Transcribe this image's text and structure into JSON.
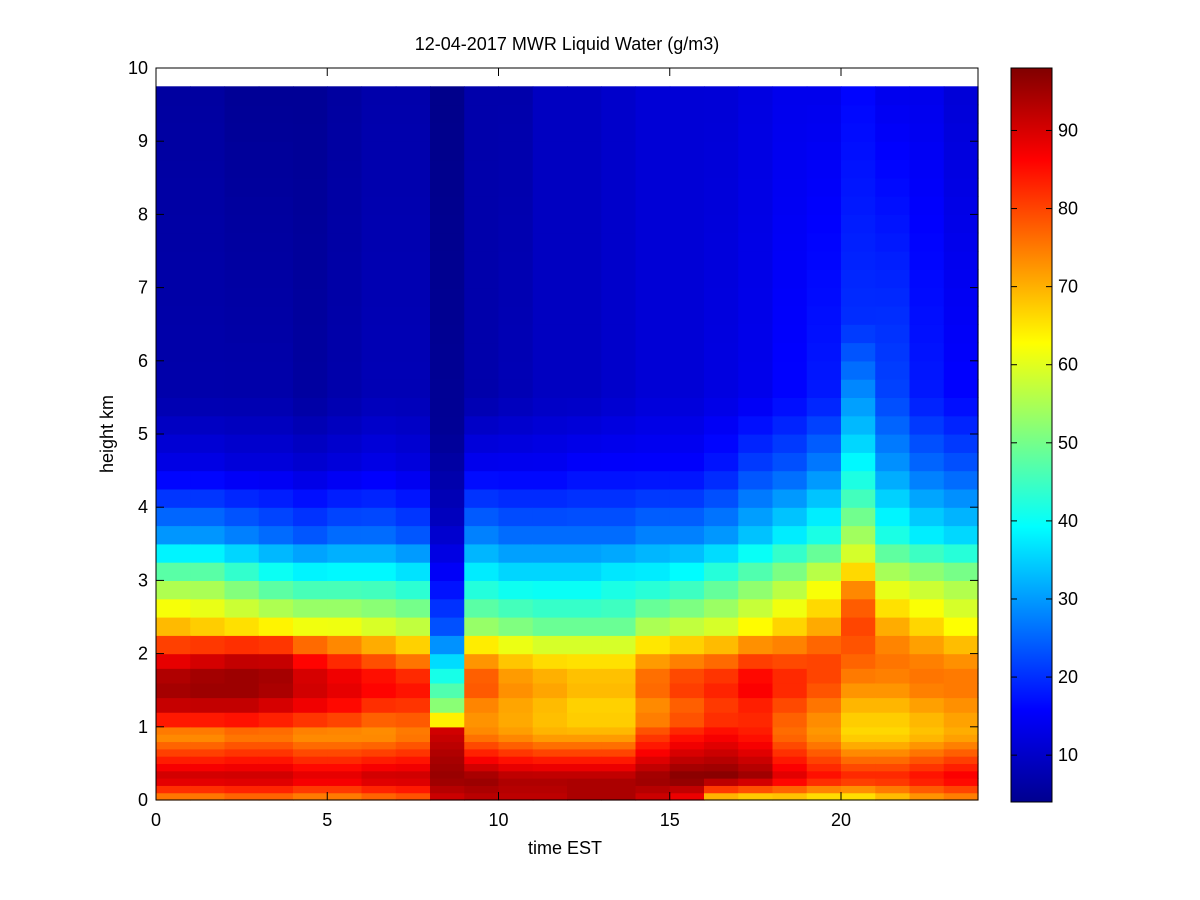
{
  "chart_data": {
    "type": "heatmap",
    "title": "12-04-2017 MWR Liquid Water (g/m3)",
    "xlabel": "time EST",
    "ylabel": "height km",
    "xlim": [
      0,
      24
    ],
    "ylim": [
      0,
      10
    ],
    "x_ticks": [
      0,
      5,
      10,
      15,
      20
    ],
    "y_ticks": [
      0,
      1,
      2,
      3,
      4,
      5,
      6,
      7,
      8,
      9,
      10
    ],
    "colorbar": {
      "range": [
        4,
        98
      ],
      "ticks": [
        10,
        20,
        30,
        40,
        50,
        60,
        70,
        80,
        90
      ],
      "colormap": "jet"
    },
    "time_columns": [
      0,
      1,
      2,
      3,
      4,
      5,
      6,
      7,
      8,
      9,
      10,
      11,
      12,
      13,
      14,
      15,
      16,
      17,
      18,
      19,
      20,
      21,
      22,
      23
    ],
    "height_levels": [
      0,
      0.1,
      0.2,
      0.3,
      0.4,
      0.5,
      0.6,
      0.7,
      0.8,
      0.9,
      1.0,
      1.2,
      1.4,
      1.6,
      1.8,
      2.0,
      2.25,
      2.5,
      2.75,
      3.0,
      3.25,
      3.5,
      3.75,
      4.0,
      4.25,
      4.5,
      4.75,
      5.0,
      5.25,
      5.5,
      5.75,
      6.0,
      6.25,
      6.5,
      6.75,
      7.0,
      7.25,
      7.5,
      7.75,
      8.0,
      8.25,
      8.5,
      8.75,
      9.0,
      9.25,
      9.5,
      9.75
    ],
    "profiles": [
      {
        "h": [
          0,
          0.3,
          0.9,
          1.2,
          1.6,
          2.0,
          2.4,
          3.0,
          3.6,
          4.5,
          5.5,
          9.75
        ],
        "v": [
          72,
          92,
          72,
          90,
          96,
          86,
          68,
          52,
          30,
          14,
          8,
          7
        ]
      },
      {
        "h": [
          0,
          0.3,
          0.9,
          1.2,
          1.6,
          2.0,
          2.4,
          3.0,
          3.6,
          4.5,
          5.5,
          9.75
        ],
        "v": [
          72,
          92,
          72,
          90,
          97,
          88,
          66,
          52,
          30,
          14,
          8,
          7
        ]
      },
      {
        "h": [
          0,
          0.3,
          0.9,
          1.2,
          1.6,
          2.0,
          2.4,
          3.0,
          3.6,
          4.5,
          5.5,
          9.75
        ],
        "v": [
          74,
          92,
          74,
          90,
          97,
          90,
          64,
          48,
          28,
          13,
          8,
          6
        ]
      },
      {
        "h": [
          0,
          0.3,
          0.9,
          1.2,
          1.6,
          2.0,
          2.4,
          3.0,
          3.6,
          4.5,
          5.5,
          9.75
        ],
        "v": [
          74,
          92,
          74,
          88,
          96,
          90,
          62,
          44,
          26,
          13,
          8,
          6
        ]
      },
      {
        "h": [
          0,
          0.3,
          0.9,
          1.2,
          1.6,
          2.0,
          2.4,
          3.0,
          3.6,
          4.5,
          5.5,
          9.75
        ],
        "v": [
          72,
          90,
          72,
          86,
          92,
          84,
          60,
          42,
          24,
          12,
          7,
          6
        ]
      },
      {
        "h": [
          0,
          0.3,
          0.9,
          1.2,
          1.6,
          2.0,
          2.4,
          3.0,
          3.6,
          4.5,
          5.5,
          9.75
        ],
        "v": [
          72,
          90,
          72,
          84,
          90,
          80,
          60,
          42,
          26,
          13,
          8,
          7
        ]
      },
      {
        "h": [
          0,
          0.3,
          0.9,
          1.2,
          1.6,
          2.0,
          2.4,
          3.0,
          3.6,
          4.5,
          5.5,
          9.75
        ],
        "v": [
          74,
          92,
          72,
          80,
          88,
          76,
          58,
          42,
          26,
          14,
          9,
          8
        ]
      },
      {
        "h": [
          0,
          0.3,
          0.9,
          1.2,
          1.6,
          2.0,
          2.4,
          3.0,
          3.6,
          4.5,
          5.5,
          9.75
        ],
        "v": [
          76,
          92,
          74,
          80,
          86,
          72,
          56,
          40,
          24,
          13,
          9,
          8
        ]
      },
      {
        "h": [
          0,
          0.3,
          0.6,
          1.0,
          1.1,
          1.3,
          1.6,
          1.9,
          2.3,
          3.0,
          3.8,
          5.0,
          9.75
        ],
        "v": [
          90,
          96,
          94,
          90,
          64,
          52,
          44,
          36,
          24,
          16,
          10,
          6,
          5
        ]
      },
      {
        "h": [
          0,
          0.3,
          0.9,
          1.2,
          1.6,
          2.0,
          2.4,
          3.0,
          3.6,
          4.5,
          5.5,
          9.75
        ],
        "v": [
          92,
          96,
          74,
          72,
          80,
          70,
          52,
          40,
          28,
          15,
          8,
          8
        ]
      },
      {
        "h": [
          0,
          0.3,
          0.9,
          1.2,
          1.6,
          2.0,
          2.4,
          3.0,
          3.6,
          4.5,
          5.5,
          9.75
        ],
        "v": [
          92,
          94,
          72,
          70,
          74,
          66,
          50,
          38,
          26,
          15,
          9,
          8
        ]
      },
      {
        "h": [
          0,
          0.3,
          0.9,
          1.2,
          1.6,
          2.0,
          2.4,
          3.0,
          3.6,
          4.5,
          5.5,
          9.75
        ],
        "v": [
          92,
          94,
          70,
          68,
          72,
          64,
          48,
          38,
          26,
          15,
          10,
          10
        ]
      },
      {
        "h": [
          0,
          0.3,
          0.9,
          1.2,
          1.6,
          2.0,
          2.4,
          3.0,
          3.6,
          4.5,
          5.5,
          9.75
        ],
        "v": [
          94,
          94,
          70,
          66,
          70,
          64,
          48,
          38,
          26,
          16,
          10,
          10
        ]
      },
      {
        "h": [
          0,
          0.3,
          0.9,
          1.2,
          1.6,
          2.0,
          2.4,
          3.0,
          3.6,
          4.5,
          5.5,
          9.75
        ],
        "v": [
          94,
          94,
          70,
          66,
          70,
          64,
          48,
          40,
          26,
          16,
          11,
          11
        ]
      },
      {
        "h": [
          0,
          0.3,
          0.9,
          1.2,
          1.6,
          2.0,
          2.4,
          3.0,
          3.6,
          4.5,
          5.5,
          9.75
        ],
        "v": [
          90,
          96,
          80,
          72,
          78,
          70,
          54,
          40,
          28,
          16,
          12,
          12
        ]
      },
      {
        "h": [
          0,
          0.3,
          0.9,
          1.2,
          1.6,
          2.0,
          2.4,
          3.0,
          3.6,
          4.5,
          5.5,
          9.75
        ],
        "v": [
          86,
          98,
          84,
          76,
          82,
          72,
          56,
          42,
          28,
          16,
          12,
          12
        ]
      },
      {
        "h": [
          0,
          0.3,
          0.9,
          1.2,
          1.6,
          2.0,
          2.4,
          3.0,
          3.6,
          4.5,
          5.5,
          9.75
        ],
        "v": [
          64,
          98,
          86,
          80,
          84,
          74,
          58,
          46,
          30,
          18,
          13,
          12
        ]
      },
      {
        "h": [
          0,
          0.3,
          0.9,
          1.2,
          1.6,
          2.0,
          2.4,
          3.0,
          3.6,
          4.5,
          5.5,
          9.75
        ],
        "v": [
          62,
          96,
          84,
          82,
          88,
          78,
          62,
          50,
          34,
          22,
          14,
          13
        ]
      },
      {
        "h": [
          0,
          0.3,
          0.9,
          1.2,
          1.6,
          2.0,
          2.4,
          3.0,
          3.6,
          4.5,
          5.5,
          9.75
        ],
        "v": [
          64,
          90,
          76,
          78,
          84,
          78,
          66,
          54,
          38,
          24,
          16,
          14
        ]
      },
      {
        "h": [
          0,
          0.3,
          0.9,
          1.2,
          1.6,
          2.0,
          2.4,
          3.0,
          3.6,
          4.5,
          5.5,
          9.75
        ],
        "v": [
          62,
          86,
          72,
          74,
          80,
          80,
          70,
          60,
          42,
          28,
          18,
          14
        ]
      },
      {
        "h": [
          0,
          0.3,
          0.9,
          1.2,
          1.6,
          2.0,
          2.4,
          2.8,
          3.4,
          4.2,
          5.0,
          6.5,
          9.75
        ],
        "v": [
          62,
          84,
          66,
          68,
          74,
          78,
          80,
          76,
          58,
          44,
          34,
          20,
          16
        ]
      },
      {
        "h": [
          0,
          0.3,
          0.9,
          1.2,
          1.6,
          2.0,
          2.4,
          3.0,
          3.6,
          4.5,
          5.5,
          9.75
        ],
        "v": [
          66,
          84,
          66,
          68,
          74,
          76,
          70,
          58,
          42,
          30,
          22,
          14
        ]
      },
      {
        "h": [
          0,
          0.3,
          0.9,
          1.2,
          1.6,
          2.0,
          2.4,
          3.0,
          3.6,
          4.5,
          5.5,
          9.75
        ],
        "v": [
          70,
          86,
          68,
          70,
          76,
          74,
          66,
          56,
          38,
          26,
          18,
          14
        ]
      },
      {
        "h": [
          0,
          0.3,
          0.9,
          1.2,
          1.6,
          2.0,
          2.4,
          3.0,
          3.6,
          4.5,
          5.5,
          9.75
        ],
        "v": [
          72,
          88,
          70,
          72,
          76,
          72,
          62,
          54,
          36,
          24,
          16,
          12
        ]
      }
    ]
  }
}
